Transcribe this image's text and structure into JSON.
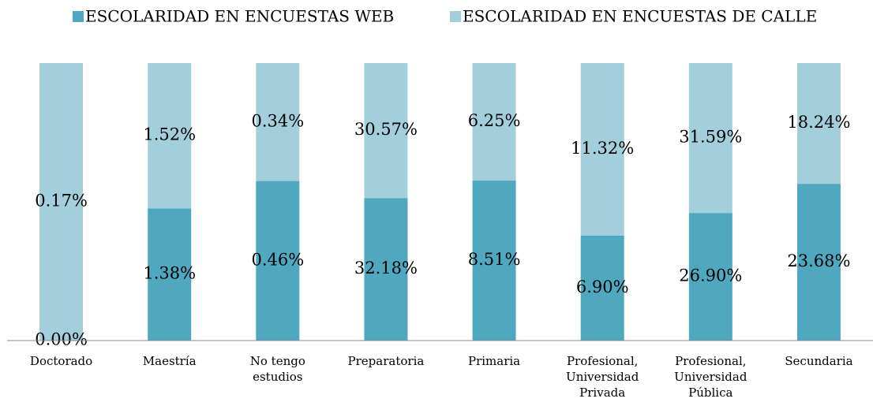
{
  "chart_data": {
    "type": "stacked100",
    "categories": [
      "Doctorado",
      "Maestría",
      "No tengo estudios",
      "Preparatoria",
      "Primaria",
      "Profesional, Universidad Privada",
      "Profesional, Universidad Pública",
      "Secundaria"
    ],
    "series": [
      {
        "name": "ESCOLARIDAD EN ENCUESTAS WEB",
        "color": "#4fa8bf",
        "values": [
          0.0,
          1.38,
          0.46,
          32.18,
          8.51,
          6.9,
          26.9,
          23.68
        ],
        "value_labels": [
          "0.00%",
          "1.38%",
          "0.46%",
          "32.18%",
          "8.51%",
          "6.90%",
          "26.90%",
          "23.68%"
        ]
      },
      {
        "name": "ESCOLARIDAD EN ENCUESTAS DE CALLE",
        "color": "#a3cfdc",
        "values": [
          0.17,
          1.52,
          0.34,
          30.57,
          6.25,
          11.32,
          31.59,
          18.24
        ],
        "value_labels": [
          "0.17%",
          "1.52%",
          "0.34%",
          "30.57%",
          "6.25%",
          "11.32%",
          "31.59%",
          "18.24%"
        ]
      }
    ],
    "legend": "top"
  }
}
